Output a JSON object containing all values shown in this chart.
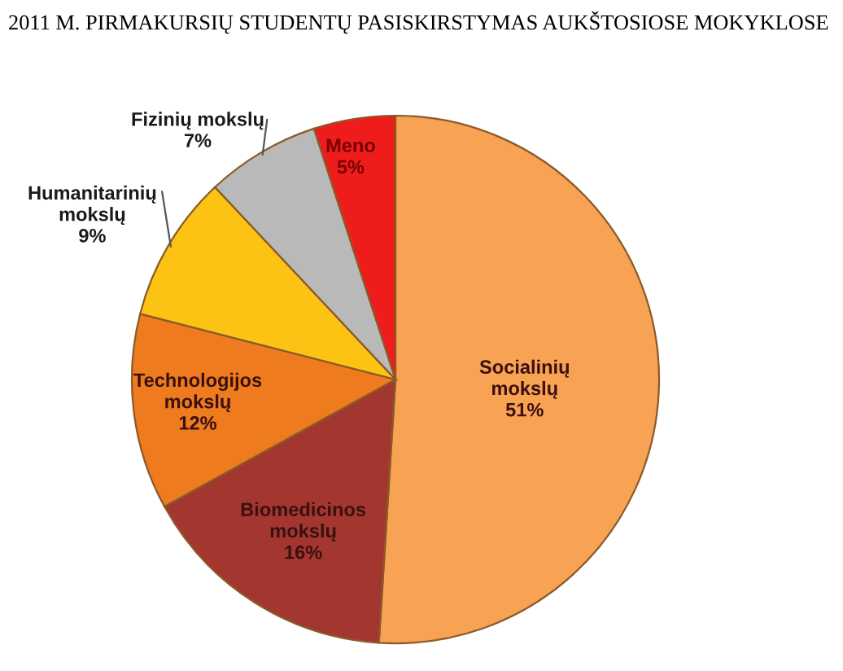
{
  "chart_data": {
    "type": "pie",
    "title": "2011 M. PIRMAKURSIŲ STUDENTŲ PASISKIRSTYMAS AUKŠTOSIOSE MOKYKLOSE",
    "categories": [
      "Socialinių\nmokslų",
      "Biomedicinos\nmokslų",
      "Technologijos\nmokslų",
      "Humanitarinių\nmokslų",
      "Fizinių mokslų",
      "Meno"
    ],
    "values": [
      51,
      16,
      12,
      9,
      7,
      5
    ],
    "value_labels": [
      "51%",
      "16%",
      "12%",
      "9%",
      "7%",
      "5%"
    ],
    "colors": [
      "#f8a253",
      "#a3372f",
      "#ee7b1e",
      "#fcc314",
      "#b9b9b9",
      "#ef1c1c"
    ]
  }
}
